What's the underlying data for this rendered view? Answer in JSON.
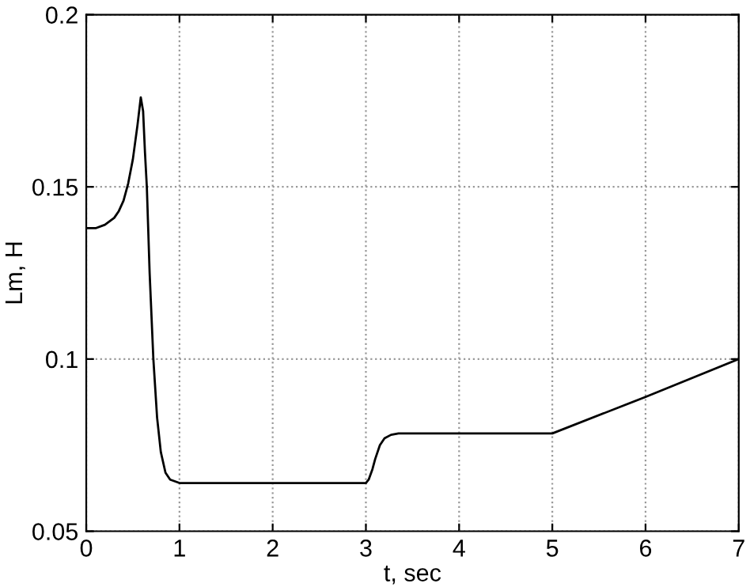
{
  "chart_data": {
    "type": "line",
    "xlabel": "t, sec",
    "ylabel": "Lm, H",
    "series": [
      {
        "color": "#000000",
        "x": [
          0,
          0.1,
          0.2,
          0.3,
          0.35,
          0.4,
          0.45,
          0.5,
          0.55,
          0.585,
          0.61,
          0.63,
          0.65,
          0.68,
          0.72,
          0.76,
          0.8,
          0.85,
          0.9,
          1.0,
          1.5,
          2.0,
          2.5,
          3.0,
          3.03,
          3.07,
          3.1,
          3.15,
          3.2,
          3.27,
          3.35,
          3.5,
          4.0,
          4.5,
          5.0,
          6.0,
          7.0
        ],
        "values": [
          0.138,
          0.138,
          0.139,
          0.141,
          0.143,
          0.146,
          0.151,
          0.158,
          0.168,
          0.176,
          0.172,
          0.16,
          0.15,
          0.125,
          0.1,
          0.083,
          0.073,
          0.067,
          0.065,
          0.064,
          0.064,
          0.064,
          0.064,
          0.064,
          0.065,
          0.068,
          0.071,
          0.075,
          0.077,
          0.078,
          0.0784,
          0.0784,
          0.0784,
          0.0784,
          0.0784,
          0.089,
          0.1
        ]
      }
    ],
    "xlim": [
      0,
      7
    ],
    "xticks": [
      0,
      1,
      2,
      3,
      4,
      5,
      6,
      7
    ],
    "ylim": [
      0.05,
      0.2
    ],
    "yticks": [
      0.05,
      0.1,
      0.15,
      0.2
    ],
    "grid": true,
    "line_style": "solid",
    "marker": "none"
  }
}
